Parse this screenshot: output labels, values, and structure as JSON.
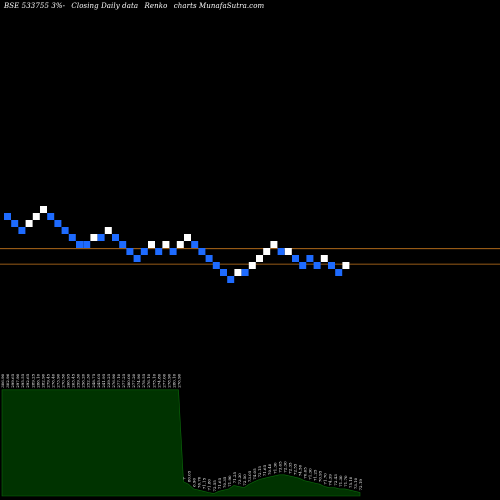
{
  "title": {
    "parts": [
      "BSE 533755 3%-",
      "Closing Daily data",
      "Renko",
      "charts MunafaSutra.com"
    ]
  },
  "colors": {
    "background": "#000000",
    "up_brick": "#ffffff",
    "down_brick": "#1e6bff",
    "level_line": "#c8781e",
    "volume_fill": "#003300",
    "volume_line": "#0a6a0a",
    "label_text": "#ffffff"
  },
  "chart_data": {
    "type": "renko",
    "brick_size": 1,
    "bricks": [
      {
        "dir": "down",
        "level": 1
      },
      {
        "dir": "down",
        "level": 0
      },
      {
        "dir": "down",
        "level": -1
      },
      {
        "dir": "up",
        "level": 0
      },
      {
        "dir": "up",
        "level": 1
      },
      {
        "dir": "up",
        "level": 2
      },
      {
        "dir": "down",
        "level": 1
      },
      {
        "dir": "down",
        "level": 0
      },
      {
        "dir": "down",
        "level": -1
      },
      {
        "dir": "down",
        "level": -2
      },
      {
        "dir": "down",
        "level": -3
      },
      {
        "dir": "down",
        "level": -3
      },
      {
        "dir": "up",
        "level": -2
      },
      {
        "dir": "down",
        "level": -2
      },
      {
        "dir": "up",
        "level": -1
      },
      {
        "dir": "down",
        "level": -2
      },
      {
        "dir": "down",
        "level": -3
      },
      {
        "dir": "down",
        "level": -4
      },
      {
        "dir": "down",
        "level": -5
      },
      {
        "dir": "down",
        "level": -4
      },
      {
        "dir": "up",
        "level": -3
      },
      {
        "dir": "down",
        "level": -4
      },
      {
        "dir": "up",
        "level": -3
      },
      {
        "dir": "down",
        "level": -4
      },
      {
        "dir": "up",
        "level": -3
      },
      {
        "dir": "up",
        "level": -2
      },
      {
        "dir": "down",
        "level": -3
      },
      {
        "dir": "down",
        "level": -4
      },
      {
        "dir": "down",
        "level": -5
      },
      {
        "dir": "down",
        "level": -6
      },
      {
        "dir": "down",
        "level": -7
      },
      {
        "dir": "down",
        "level": -8
      },
      {
        "dir": "up",
        "level": -7
      },
      {
        "dir": "down",
        "level": -7
      },
      {
        "dir": "up",
        "level": -6
      },
      {
        "dir": "up",
        "level": -5
      },
      {
        "dir": "up",
        "level": -4
      },
      {
        "dir": "up",
        "level": -3
      },
      {
        "dir": "down",
        "level": -4
      },
      {
        "dir": "up",
        "level": -4
      },
      {
        "dir": "down",
        "level": -5
      },
      {
        "dir": "down",
        "level": -6
      },
      {
        "dir": "down",
        "level": -5
      },
      {
        "dir": "down",
        "level": -6
      },
      {
        "dir": "up",
        "level": -5
      },
      {
        "dir": "down",
        "level": -6
      },
      {
        "dir": "down",
        "level": -7
      },
      {
        "dir": "up",
        "level": -6
      }
    ],
    "level_lines": [
      -4.1,
      -6.3
    ],
    "volume": {
      "labels": [
        "306.90",
        "302.96",
        "299.65",
        "297.90",
        "295.55",
        "292.65",
        "289.25",
        "286.10",
        "282.90",
        "279.45",
        "276.40",
        "273.90",
        "270.50",
        "266.95",
        "263.45",
        "259.30",
        "256.20",
        "252.30",
        "248.75",
        "245.05",
        "241.95",
        "239.25",
        "276.90",
        "277.10",
        "277.25",
        "280.00",
        "277.20",
        "274.90",
        "278.55",
        "276.10",
        "275.10",
        "274.80",
        "277.00",
        "278.90",
        "280.10",
        "276.90",
        "7",
        "80.05",
        "6.90",
        "76.70",
        "71.15",
        "71.80",
        "72.55",
        "71.65",
        "70.35",
        "71.90",
        "71.25",
        "73.30",
        "72.50",
        "73.05",
        "74.05",
        "72.15",
        "71.65",
        "70.40",
        "71.30",
        "73.65",
        "72.30",
        "72.35",
        "72.55",
        "74.50",
        "70.65",
        "71.30",
        "71.25",
        "70.95",
        "71.70",
        "74.39",
        "72.43",
        "71.30",
        "71.70",
        "75.10",
        "73.10",
        "72.19"
      ],
      "bars": [
        0.9,
        0.9,
        0.9,
        0.9,
        0.9,
        0.9,
        0.9,
        0.9,
        0.9,
        0.9,
        0.9,
        0.9,
        0.9,
        0.9,
        0.9,
        0.9,
        0.9,
        0.9,
        0.9,
        0.9,
        0.9,
        0.9,
        0.9,
        0.9,
        0.9,
        0.9,
        0.9,
        0.9,
        0.9,
        0.9,
        0.9,
        0.9,
        0.9,
        0.9,
        0.9,
        0.9,
        0.12,
        0.1,
        0.06,
        0.05,
        0.04,
        0.03,
        0.02,
        0.04,
        0.05,
        0.06,
        0.09,
        0.08,
        0.07,
        0.1,
        0.12,
        0.14,
        0.15,
        0.16,
        0.17,
        0.18,
        0.18,
        0.17,
        0.16,
        0.15,
        0.13,
        0.12,
        0.11,
        0.1,
        0.08,
        0.07,
        0.07,
        0.06,
        0.06,
        0.05,
        0.04,
        0.03
      ]
    }
  }
}
